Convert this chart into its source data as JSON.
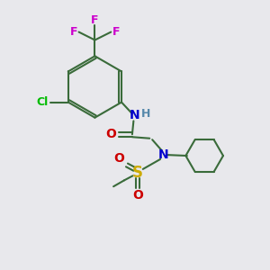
{
  "bg_color": "#e8e8ec",
  "atom_colors": {
    "C": "#3a6b3a",
    "N": "#0000cc",
    "O": "#cc0000",
    "S": "#ccaa00",
    "F": "#cc00cc",
    "Cl": "#00bb00",
    "H": "#5588aa"
  },
  "bond_color": "#3a6b3a",
  "figsize": [
    3.0,
    3.0
  ],
  "dpi": 100
}
